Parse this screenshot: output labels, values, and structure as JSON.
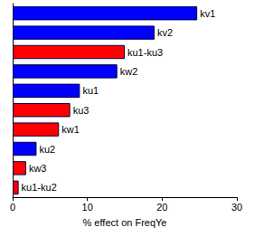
{
  "chart_data": {
    "type": "bar",
    "orientation": "horizontal",
    "x_label": "% effect on FreqYe",
    "categories": [
      "kv1",
      "kv2",
      "ku1-ku3",
      "kw2",
      "ku1",
      "ku3",
      "kw1",
      "ku2",
      "kw3",
      "ku1-ku2"
    ],
    "values": [
      24.7,
      19.0,
      15.0,
      14.0,
      9.0,
      7.7,
      6.2,
      3.2,
      1.8,
      0.8
    ],
    "colors": [
      "#0000ff",
      "#0000ff",
      "#ff0000",
      "#0000ff",
      "#0000ff",
      "#ff0000",
      "#ff0000",
      "#0000ff",
      "#ff0000",
      "#ff0000"
    ],
    "xlim": [
      0,
      30
    ],
    "xticks": [
      0,
      10,
      20,
      30
    ],
    "grid": false,
    "tick_labels": "x"
  }
}
